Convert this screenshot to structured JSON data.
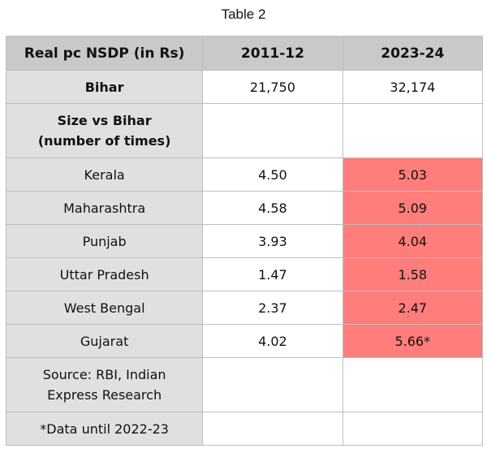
{
  "title": "Table 2",
  "table": {
    "headers": [
      "Real pc NSDP (in Rs)",
      "2011-12",
      "2023-24"
    ],
    "bihar": {
      "label": "Bihar",
      "v2011": "21,750",
      "v2023": "32,174"
    },
    "section_label_line1": "Size vs Bihar",
    "section_label_line2": "(number of times)",
    "rows": [
      {
        "state": "Kerala",
        "v2011": "4.50",
        "v2023": "5.03"
      },
      {
        "state": "Maharashtra",
        "v2011": "4.58",
        "v2023": "5.09"
      },
      {
        "state": "Punjab",
        "v2011": "3.93",
        "v2023": "4.04"
      },
      {
        "state": "Uttar Pradesh",
        "v2011": "1.47",
        "v2023": "1.58"
      },
      {
        "state": "West Bengal",
        "v2011": "2.37",
        "v2023": "2.47"
      },
      {
        "state": "Gujarat",
        "v2011": "4.02",
        "v2023": "5.66*"
      }
    ],
    "source_line1": "Source: RBI, Indian",
    "source_line2": "Express Research",
    "footnote": "*Data until 2022-23",
    "highlight_color": "#ff7d7b"
  }
}
